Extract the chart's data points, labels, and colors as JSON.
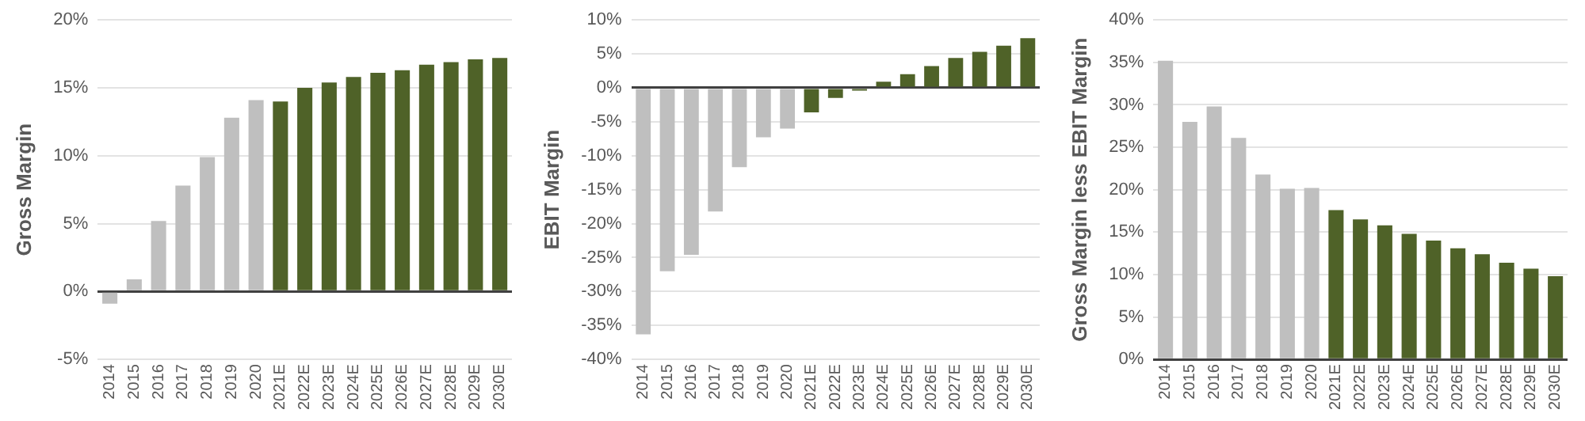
{
  "chart_data": [
    {
      "type": "bar",
      "ylabel": "Gross Margin",
      "categories": [
        "2014",
        "2015",
        "2016",
        "2017",
        "2018",
        "2019",
        "2020",
        "2021E",
        "2022E",
        "2023E",
        "2024E",
        "2025E",
        "2026E",
        "2027E",
        "2028E",
        "2029E",
        "2030E"
      ],
      "values": [
        -0.9,
        0.9,
        5.2,
        7.8,
        9.9,
        12.8,
        14.1,
        14.0,
        15.0,
        15.4,
        15.8,
        16.1,
        16.3,
        16.7,
        16.9,
        17.1,
        17.2
      ],
      "colors": [
        "#bfbfbf",
        "#bfbfbf",
        "#bfbfbf",
        "#bfbfbf",
        "#bfbfbf",
        "#bfbfbf",
        "#bfbfbf",
        "#4f6228",
        "#4f6228",
        "#4f6228",
        "#4f6228",
        "#4f6228",
        "#4f6228",
        "#4f6228",
        "#4f6228",
        "#4f6228",
        "#4f6228"
      ],
      "ylim": [
        -5,
        20
      ],
      "yticks": [
        {
          "value": -5,
          "label": "-5%"
        },
        {
          "value": 0,
          "label": "0%"
        },
        {
          "value": 5,
          "label": "5%"
        },
        {
          "value": 10,
          "label": "10%"
        },
        {
          "value": 15,
          "label": "15%"
        },
        {
          "value": 20,
          "label": "20%"
        }
      ],
      "grid": "y",
      "legend": false
    },
    {
      "type": "bar",
      "ylabel": "EBIT Margin",
      "categories": [
        "2014",
        "2015",
        "2016",
        "2017",
        "2018",
        "2019",
        "2020",
        "2021E",
        "2022E",
        "2023E",
        "2024E",
        "2025E",
        "2026E",
        "2027E",
        "2028E",
        "2029E",
        "2030E"
      ],
      "values": [
        -36.3,
        -27.0,
        -24.6,
        -18.2,
        -11.7,
        -7.3,
        -6.0,
        -3.6,
        -1.5,
        -0.4,
        0.9,
        2.0,
        3.2,
        4.4,
        5.3,
        6.2,
        7.3
      ],
      "colors": [
        "#bfbfbf",
        "#bfbfbf",
        "#bfbfbf",
        "#bfbfbf",
        "#bfbfbf",
        "#bfbfbf",
        "#bfbfbf",
        "#4f6228",
        "#4f6228",
        "#4f6228",
        "#4f6228",
        "#4f6228",
        "#4f6228",
        "#4f6228",
        "#4f6228",
        "#4f6228",
        "#4f6228"
      ],
      "ylim": [
        -40,
        10
      ],
      "yticks": [
        {
          "value": -40,
          "label": "-40%"
        },
        {
          "value": -35,
          "label": "-35%"
        },
        {
          "value": -30,
          "label": "-30%"
        },
        {
          "value": -25,
          "label": "-25%"
        },
        {
          "value": -20,
          "label": "-20%"
        },
        {
          "value": -15,
          "label": "-15%"
        },
        {
          "value": -10,
          "label": "-10%"
        },
        {
          "value": -5,
          "label": "-5%"
        },
        {
          "value": 0,
          "label": "0%"
        },
        {
          "value": 5,
          "label": "5%"
        },
        {
          "value": 10,
          "label": "10%"
        }
      ],
      "grid": "y",
      "legend": false
    },
    {
      "type": "bar",
      "ylabel": "Gross Margin less EBIT Margin",
      "categories": [
        "2014",
        "2015",
        "2016",
        "2017",
        "2018",
        "2019",
        "2020",
        "2021E",
        "2022E",
        "2023E",
        "2024E",
        "2025E",
        "2026E",
        "2027E",
        "2028E",
        "2029E",
        "2030E"
      ],
      "values": [
        35.2,
        28.0,
        29.8,
        26.1,
        21.8,
        20.1,
        20.2,
        17.6,
        16.5,
        15.8,
        14.8,
        14.0,
        13.1,
        12.4,
        11.4,
        10.7,
        9.8
      ],
      "colors": [
        "#bfbfbf",
        "#bfbfbf",
        "#bfbfbf",
        "#bfbfbf",
        "#bfbfbf",
        "#bfbfbf",
        "#bfbfbf",
        "#4f6228",
        "#4f6228",
        "#4f6228",
        "#4f6228",
        "#4f6228",
        "#4f6228",
        "#4f6228",
        "#4f6228",
        "#4f6228",
        "#4f6228"
      ],
      "ylim": [
        0,
        40
      ],
      "yticks": [
        {
          "value": 0,
          "label": "0%"
        },
        {
          "value": 5,
          "label": "5%"
        },
        {
          "value": 10,
          "label": "10%"
        },
        {
          "value": 15,
          "label": "15%"
        },
        {
          "value": 20,
          "label": "20%"
        },
        {
          "value": 25,
          "label": "25%"
        },
        {
          "value": 30,
          "label": "30%"
        },
        {
          "value": 35,
          "label": "35%"
        },
        {
          "value": 40,
          "label": "40%"
        }
      ],
      "grid": "y",
      "legend": false
    }
  ]
}
